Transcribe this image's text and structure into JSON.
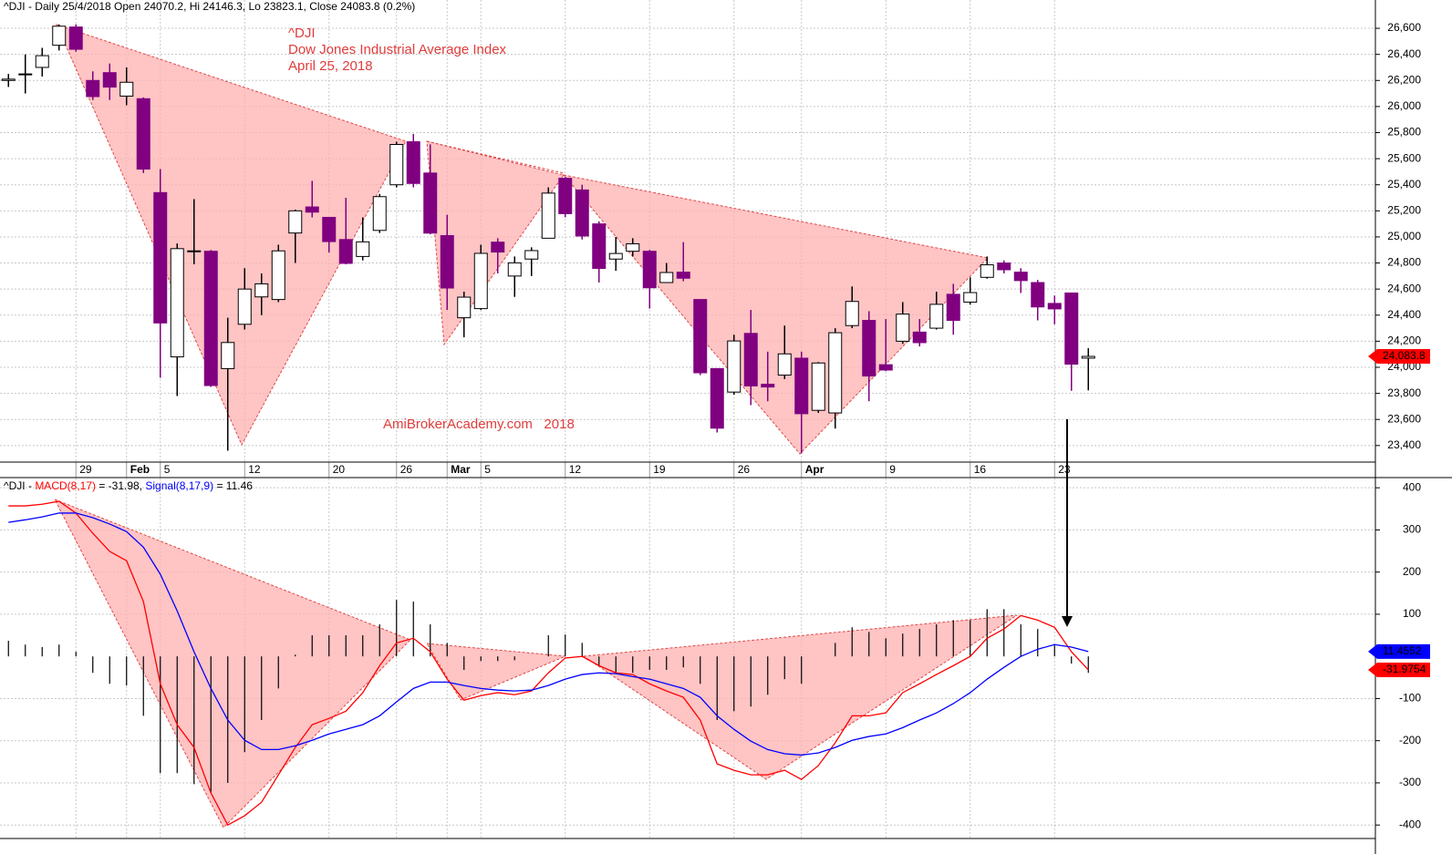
{
  "chart_data": [
    {
      "type": "candlestick",
      "header": "^DJI - Daily 25/4/2018 Open 24070.2, Hi 24146.3, Lo 23823.1, Close 24083.8 (0.2%)",
      "annotations": [
        "^DJI",
        "Dow Jones Industrial Average Index",
        "April 25, 2018",
        "AmiBrokerAcademy.com   2018"
      ],
      "categories": [
        null,
        null,
        null,
        null,
        "29",
        null,
        null,
        "Feb",
        null,
        "5",
        null,
        null,
        null,
        null,
        "12",
        null,
        null,
        null,
        null,
        "20",
        null,
        null,
        null,
        "26",
        null,
        null,
        "Mar",
        null,
        "5",
        null,
        null,
        null,
        null,
        "12",
        null,
        null,
        null,
        null,
        "19",
        null,
        null,
        null,
        null,
        "26",
        null,
        null,
        null,
        "Apr",
        null,
        null,
        null,
        null,
        "9",
        null,
        null,
        null,
        null,
        "16",
        null,
        null,
        null,
        null,
        "23",
        null,
        null
      ],
      "open": [
        26200,
        26250,
        26300,
        26470,
        26610,
        26200,
        26260,
        26080,
        26060,
        25340,
        24080,
        24890,
        24890,
        23990,
        24330,
        24540,
        24520,
        25030,
        25230,
        25150,
        24980,
        24850,
        25050,
        25400,
        25730,
        25490,
        25010,
        24380,
        24450,
        24960,
        24700,
        24830,
        24990,
        25450,
        25360,
        25100,
        24830,
        24890,
        24890,
        24650,
        24730,
        24520,
        23990,
        23810,
        24260,
        23870,
        23940,
        24070,
        23670,
        23650,
        24320,
        24360,
        24020,
        24200,
        24270,
        24300,
        24560,
        24500,
        24690,
        24800,
        24730,
        24650,
        24490,
        24570,
        24070.2
      ],
      "high": [
        26250,
        26400,
        26450,
        26630,
        26630,
        26270,
        26330,
        26300,
        26070,
        25520,
        24950,
        25290,
        24900,
        24380,
        24760,
        24720,
        24940,
        25210,
        25430,
        25150,
        25300,
        25150,
        25330,
        25730,
        25790,
        25710,
        25170,
        24580,
        24940,
        24990,
        24850,
        24920,
        25380,
        25460,
        25400,
        25120,
        25000,
        24990,
        24900,
        24800,
        24960,
        24520,
        23990,
        24250,
        24440,
        24120,
        24320,
        24120,
        24040,
        24300,
        24620,
        24430,
        24370,
        24500,
        24370,
        24580,
        24640,
        24690,
        24850,
        24820,
        24760,
        24670,
        24550,
        24570,
        24146.3
      ],
      "low": [
        26150,
        26100,
        26230,
        26430,
        26420,
        26050,
        26050,
        26010,
        25490,
        23920,
        23780,
        24790,
        23850,
        23360,
        24290,
        24400,
        24500,
        24800,
        25150,
        24880,
        24790,
        24820,
        25030,
        25380,
        25380,
        25020,
        24440,
        24230,
        24440,
        24720,
        24540,
        24700,
        24990,
        25150,
        24980,
        24650,
        24740,
        24850,
        24450,
        24650,
        24660,
        23940,
        23500,
        23790,
        23710,
        23740,
        23910,
        23340,
        23650,
        23530,
        24300,
        23740,
        23970,
        24180,
        24160,
        24290,
        24250,
        24480,
        24680,
        24720,
        24570,
        24360,
        24330,
        23820,
        23823.1
      ],
      "close": [
        26210,
        26250,
        26390,
        26616,
        26439,
        26076,
        26149,
        26186,
        25520,
        24340,
        24910,
        24893,
        23860,
        24190,
        24600,
        24640,
        24893,
        25200,
        25190,
        24964,
        24797,
        24962,
        25309,
        25709,
        25410,
        25029,
        24608,
        24538,
        24874,
        24884,
        24801,
        24895,
        25336,
        25178,
        25007,
        24758,
        24873,
        24947,
        24610,
        24727,
        24683,
        23958,
        23533,
        24202,
        23857,
        23849,
        24103,
        23644,
        24033,
        24265,
        24505,
        23933,
        23979,
        24408,
        24189,
        24483,
        24360,
        24573,
        24786,
        24748,
        24665,
        24463,
        24448,
        24024,
        24083.8
      ],
      "up_color": "#ffffff",
      "down_color": "#800080",
      "ylim": [
        23273,
        26817
      ],
      "yticks": [
        {
          "value": 23400,
          "label": "23,400"
        },
        {
          "value": 23600,
          "label": "23,600"
        },
        {
          "value": 23800,
          "label": "23,800"
        },
        {
          "value": 24000,
          "label": "24,000"
        },
        {
          "value": 24200,
          "label": "24,200"
        },
        {
          "value": 24400,
          "label": "24,400"
        },
        {
          "value": 24600,
          "label": "24,600"
        },
        {
          "value": 24800,
          "label": "24,800"
        },
        {
          "value": 25000,
          "label": "25,000"
        },
        {
          "value": 25200,
          "label": "25,200"
        },
        {
          "value": 25400,
          "label": "25,400"
        },
        {
          "value": 25600,
          "label": "25,600"
        },
        {
          "value": 25800,
          "label": "25,800"
        },
        {
          "value": 26000,
          "label": "26,000"
        },
        {
          "value": 26200,
          "label": "26,200"
        },
        {
          "value": 26400,
          "label": "26,400"
        },
        {
          "value": 26600,
          "label": "26,600"
        }
      ],
      "last_value_label": {
        "value": 24083.8,
        "label": "24,083.8",
        "color": "#ff0000"
      },
      "grid": true
    },
    {
      "type": "line",
      "header": "^DJI -",
      "series": [
        {
          "name": "MACD(8,17)",
          "color": "#ff0000",
          "legend_value": "= -31.98,",
          "values": [
            357,
            357,
            361,
            368,
            340,
            292,
            249,
            227,
            130,
            -65,
            -162,
            -216,
            -324,
            -400,
            -378,
            -346,
            -281,
            -216,
            -162,
            -147,
            -130,
            -86,
            -22,
            32,
            43,
            11,
            -54,
            -104,
            -93,
            -86,
            -91,
            -82,
            -39,
            -4,
            0,
            -22,
            -39,
            -43,
            -65,
            -82,
            -97,
            -151,
            -255,
            -270,
            -281,
            -281,
            -270,
            -292,
            -259,
            -205,
            -141,
            -141,
            -134,
            -86,
            -65,
            -43,
            -22,
            0,
            43,
            65,
            97,
            86,
            69,
            11,
            -31.98
          ],
          "last_value_label": {
            "value": -31.9754,
            "label": "-31.9754",
            "color": "#ff0000"
          }
        },
        {
          "name": "Signal(8,17,9)",
          "color": "#0000ff",
          "legend_value": "= 11.46",
          "values": [
            318,
            324,
            331,
            340,
            340,
            329,
            314,
            296,
            259,
            195,
            108,
            11,
            -76,
            -151,
            -199,
            -221,
            -221,
            -212,
            -199,
            -184,
            -173,
            -162,
            -141,
            -108,
            -76,
            -61,
            -61,
            -69,
            -76,
            -80,
            -82,
            -80,
            -69,
            -54,
            -43,
            -39,
            -41,
            -48,
            -54,
            -65,
            -76,
            -97,
            -141,
            -173,
            -201,
            -221,
            -231,
            -234,
            -229,
            -216,
            -199,
            -190,
            -184,
            -169,
            -151,
            -134,
            -112,
            -86,
            -54,
            -26,
            0,
            17,
            28,
            22,
            11.46
          ],
          "last_value_label": {
            "value": 11.4552,
            "label": "11.4552",
            "color": "#0000ff"
          }
        }
      ],
      "histogram": {
        "color": "#000000",
        "values": [
          37,
          28,
          22,
          28,
          11,
          -39,
          -65,
          -69,
          -141,
          -277,
          -277,
          -303,
          -324,
          -300,
          -227,
          -151,
          -76,
          4,
          50,
          50,
          50,
          50,
          76,
          134,
          130,
          76,
          32,
          -32,
          -11,
          -11,
          -9,
          0,
          50,
          52,
          32,
          -22,
          -39,
          -39,
          -32,
          -32,
          -26,
          -65,
          -151,
          -130,
          -119,
          -91,
          -54,
          -65,
          0,
          32,
          69,
          58,
          43,
          54,
          65,
          76,
          86,
          86,
          112,
          112,
          76,
          65,
          26,
          -17,
          -39
        ]
      },
      "ylim": [
        -432,
        422
      ],
      "yticks": [
        400,
        300,
        200,
        100,
        -100,
        -200,
        -300,
        -400
      ],
      "grid": true
    }
  ]
}
